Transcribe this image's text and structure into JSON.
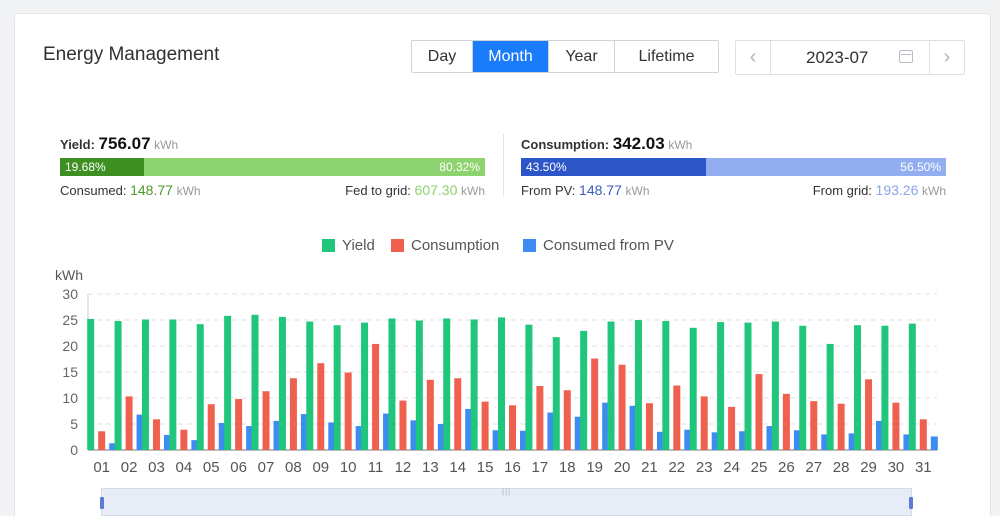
{
  "header": {
    "title": "Energy Management"
  },
  "period_tabs": [
    {
      "label": "Day",
      "active": false
    },
    {
      "label": "Month",
      "active": true
    },
    {
      "label": "Year",
      "active": false
    },
    {
      "label": "Lifetime",
      "active": false
    }
  ],
  "date_picker": {
    "value": "2023-07",
    "prev": "‹",
    "next": "›"
  },
  "yield": {
    "label": "Yield:",
    "value": "756.07",
    "unit": "kWh",
    "consumed_pct": "19.68%",
    "fed_pct": "80.32%",
    "consumed_label": "Consumed:",
    "consumed_value": "148.77",
    "consumed_unit": "kWh",
    "fed_label": "Fed to grid:",
    "fed_value": "607.30",
    "fed_unit": "kWh",
    "consumed_fraction": 0.1968
  },
  "consumption": {
    "label": "Consumption:",
    "value": "342.03",
    "unit": "kWh",
    "pv_pct": "43.50%",
    "grid_pct": "56.50%",
    "pv_label": "From PV:",
    "pv_value": "148.77",
    "pv_unit": "kWh",
    "grid_label": "From grid:",
    "grid_value": "193.26",
    "grid_unit": "kWh",
    "pv_fraction": 0.435
  },
  "colors": {
    "accent": "#1a7cfa",
    "yield": "#1fc67c",
    "consumption": "#f0604e",
    "consumed_pv": "#3d8cf2",
    "yield_dark": "#3d8f22",
    "yield_light": "#8dd36f",
    "cons_dark": "#2c55c8",
    "cons_light": "#93aef0",
    "consumed_text": "#4e9a2c",
    "fed_text": "#8dd36f",
    "pv_text": "#3a5bbf",
    "grid_text": "#8aa6ea"
  },
  "chart_data": {
    "type": "bar",
    "ylabel": "kWh",
    "ylim": [
      0,
      30
    ],
    "yticks": [
      0,
      5,
      10,
      15,
      20,
      25,
      30
    ],
    "grid": true,
    "legend_position": "top-center",
    "categories": [
      "01",
      "02",
      "03",
      "04",
      "05",
      "06",
      "07",
      "08",
      "09",
      "10",
      "11",
      "12",
      "13",
      "14",
      "15",
      "16",
      "17",
      "18",
      "19",
      "20",
      "21",
      "22",
      "23",
      "24",
      "25",
      "26",
      "27",
      "28",
      "29",
      "30",
      "31"
    ],
    "series": [
      {
        "name": "Yield",
        "values": [
          25.2,
          24.8,
          25.1,
          25.1,
          24.2,
          25.8,
          26.0,
          25.6,
          24.7,
          24.0,
          24.5,
          25.3,
          24.9,
          25.3,
          25.1,
          25.5,
          24.1,
          21.7,
          22.9,
          24.7,
          25.0,
          24.8,
          23.5,
          24.6,
          24.5,
          24.7,
          23.9,
          20.4,
          24.0,
          23.9,
          24.3
        ]
      },
      {
        "name": "Consumption",
        "values": [
          3.6,
          10.3,
          5.9,
          3.9,
          8.8,
          9.8,
          11.3,
          13.8,
          16.7,
          14.9,
          20.4,
          9.5,
          13.5,
          13.8,
          9.3,
          8.6,
          12.3,
          11.5,
          17.6,
          16.4,
          9.0,
          12.4,
          10.3,
          8.3,
          14.6,
          10.8,
          9.4,
          8.9,
          13.6,
          9.1,
          5.9
        ]
      },
      {
        "name": "Consumed from PV",
        "values": [
          1.3,
          6.8,
          2.9,
          1.9,
          5.2,
          4.6,
          5.6,
          6.9,
          5.3,
          4.6,
          7.0,
          5.7,
          5.0,
          7.9,
          3.8,
          3.7,
          7.2,
          6.4,
          9.1,
          8.5,
          3.5,
          3.9,
          3.4,
          3.6,
          4.6,
          3.8,
          3.0,
          3.2,
          5.6,
          3.0,
          2.6
        ]
      }
    ]
  }
}
